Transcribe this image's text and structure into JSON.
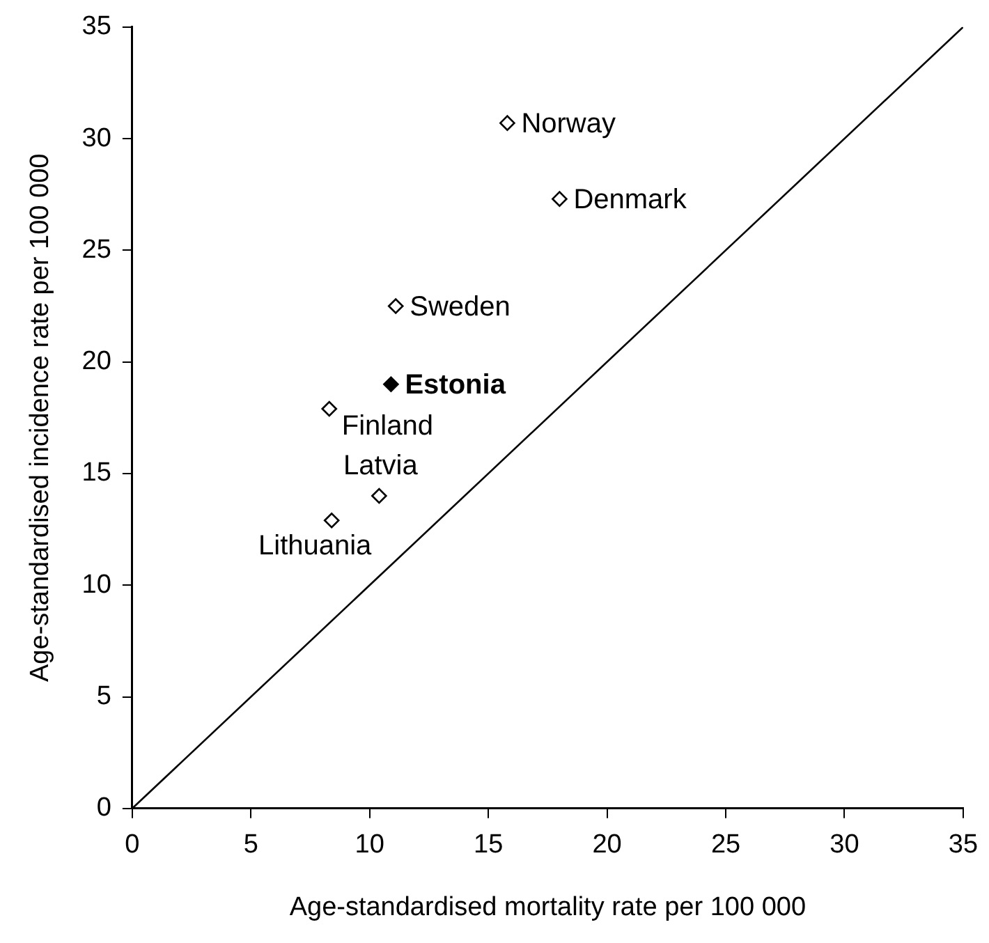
{
  "chart_data": {
    "type": "scatter",
    "xlabel": "Age-standardised mortality rate per 100 000",
    "ylabel": "Age-standardised incidence rate per 100 000",
    "xlim": [
      0,
      35
    ],
    "xticks": [
      0,
      5,
      10,
      15,
      20,
      25,
      30,
      35
    ],
    "ylim": [
      0,
      35
    ],
    "yticks": [
      0,
      5,
      10,
      15,
      20,
      25,
      30,
      35
    ],
    "grid": false,
    "legend": false,
    "marker": "diamond",
    "series": [
      {
        "type": "scatter",
        "x": [
          15.8,
          18.0,
          11.1,
          10.9,
          8.3,
          10.4,
          8.4
        ],
        "values": [
          30.7,
          27.3,
          22.5,
          19.0,
          17.9,
          14.0,
          12.9
        ],
        "colors": [
          "#ffffff",
          "#ffffff",
          "#ffffff",
          "#000000",
          "#ffffff",
          "#ffffff",
          "#ffffff"
        ]
      },
      {
        "type": "line",
        "x": [
          0,
          35
        ],
        "values": [
          0,
          35
        ],
        "color": "#000000",
        "marker": "none",
        "line_style": "solid"
      }
    ],
    "annotations": [
      {
        "text": "Norway",
        "x": 15.8,
        "y": 30.7
      },
      {
        "text": "Denmark",
        "x": 18.0,
        "y": 27.3
      },
      {
        "text": "Sweden",
        "x": 11.1,
        "y": 22.5
      },
      {
        "text": "Estonia",
        "x": 10.9,
        "y": 19.0
      },
      {
        "text": "Finland",
        "x": 8.3,
        "y": 17.9
      },
      {
        "text": "Latvia",
        "x": 10.4,
        "y": 14.0
      },
      {
        "text": "Lithuania",
        "x": 8.4,
        "y": 12.9
      }
    ]
  }
}
